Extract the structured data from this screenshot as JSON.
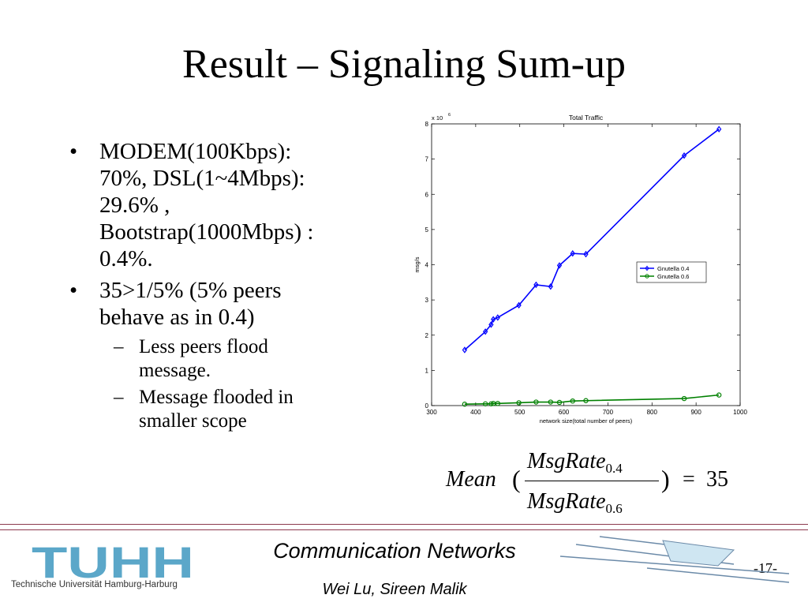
{
  "slide": {
    "title": "Result – Signaling Sum-up",
    "bullets": [
      {
        "lines": [
          "MODEM(100Kbps):",
          "70%, DSL(1~4Mbps):",
          "29.6% ,",
          "Bootstrap(1000Mbps) :",
          "0.4%."
        ]
      },
      {
        "lines": [
          "35>1/5% (5% peers",
          "behave as in 0.4)"
        ]
      }
    ],
    "subbullets": [
      {
        "lines": [
          "Less peers flood",
          "message."
        ]
      },
      {
        "lines": [
          "Message flooded in",
          "smaller scope"
        ]
      }
    ],
    "bullet_glyph": "•",
    "dash_glyph": "–"
  },
  "formula": {
    "mean": "Mean",
    "numerator": "MsgRate",
    "numerator_sub": "0.4",
    "denominator": "MsgRate",
    "denominator_sub": "0.6",
    "equals": "=",
    "value": "35"
  },
  "footer": {
    "logo": "TUHH",
    "logo_subtitle": "Technische Universität Hamburg-Harburg",
    "course": "Communication Networks",
    "authors": "Wei Lu, Sireen Malik",
    "page": "-17-"
  },
  "colors": {
    "gnutella_04": "#0000ff",
    "gnutella_06": "#008000",
    "logo": "#5ba7c9",
    "rule": "#8c3a4f"
  },
  "chart_data": {
    "type": "line",
    "title": "Total Traffic",
    "xlabel": "network size(total number of peers)",
    "ylabel": "msg/s",
    "y_multiplier": "x 10",
    "y_multiplier_exp": "6",
    "xlim": [
      300,
      1000
    ],
    "ylim": [
      0,
      8
    ],
    "xticks": [
      300,
      400,
      500,
      600,
      700,
      800,
      900,
      1000
    ],
    "yticks": [
      0,
      1,
      2,
      3,
      4,
      5,
      6,
      7,
      8
    ],
    "legend_position": "right",
    "grid": false,
    "series": [
      {
        "name": "Gnutella 0.4",
        "color": "#0000ff",
        "x": [
          375,
          422,
          435,
          440,
          450,
          498,
          537,
          570,
          590,
          620,
          650,
          873,
          952
        ],
        "y": [
          1.58,
          2.1,
          2.3,
          2.45,
          2.5,
          2.85,
          3.43,
          3.38,
          3.98,
          4.32,
          4.3,
          7.1,
          7.85
        ]
      },
      {
        "name": "Gnutella 0.6",
        "color": "#008000",
        "x": [
          375,
          422,
          435,
          440,
          450,
          498,
          537,
          570,
          590,
          620,
          650,
          873,
          952
        ],
        "y": [
          0.04,
          0.05,
          0.05,
          0.06,
          0.06,
          0.08,
          0.1,
          0.1,
          0.09,
          0.13,
          0.14,
          0.2,
          0.3
        ]
      }
    ]
  }
}
